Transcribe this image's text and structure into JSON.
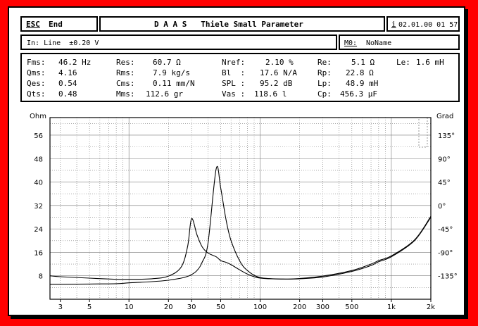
{
  "title_bar": {
    "esc_key": "ESC",
    "end_label": "End",
    "title": "D A A S   Thiele Small Parameter",
    "info_key": "i",
    "datetime": "02.01.00 01 57"
  },
  "status_bar": {
    "input": "In: Line  ±0.20 V",
    "memory_key": "M0:",
    "memory_name": "NoName"
  },
  "params": {
    "col1": [
      {
        "label": "Fms:",
        "value": "46.2 Hz"
      },
      {
        "label": "Qms:",
        "value": "4.16"
      },
      {
        "label": "Qes:",
        "value": "0.54"
      },
      {
        "label": "Qts:",
        "value": "0.48"
      }
    ],
    "col2": [
      {
        "label": "Res:",
        "value": "60.7 Ω"
      },
      {
        "label": "Rms:",
        "value": "7.9 kg/s"
      },
      {
        "label": "Cms:",
        "value": "0.11 mm/N"
      },
      {
        "label": "Mms:",
        "value": "112.6 gr"
      }
    ],
    "col3": [
      {
        "label": "Nref:",
        "value": "2.10 %"
      },
      {
        "label": "Bl  :",
        "value": "17.6 N/A"
      },
      {
        "label": "SPL :",
        "value": "95.2 dB"
      },
      {
        "label": "Vas :",
        "value": "118.6 l"
      }
    ],
    "col4": [
      {
        "label": "Re:",
        "value": "5.1 Ω"
      },
      {
        "label": "Rp:",
        "value": "22.8 Ω"
      },
      {
        "label": "Lp:",
        "value": "48.9 mH"
      },
      {
        "label": "Cp:",
        "value": "456.3 µF"
      }
    ],
    "col5": [
      {
        "label": "Le:",
        "value": "1.6 mH"
      }
    ]
  },
  "chart_data": {
    "type": "line",
    "left_axis_label": "Ohm",
    "right_axis_label": "Grad",
    "y_ticks": [
      "56",
      "48",
      "40",
      "32",
      "24",
      "16",
      "8"
    ],
    "y_right_ticks": [
      "135°",
      "90°",
      "45°",
      "0°",
      "-45°",
      "-90°",
      "-135°"
    ],
    "x_ticks": [
      "3",
      "5",
      "10",
      "20",
      "30",
      "50",
      "100",
      "200",
      "300",
      "500",
      "1k",
      "2k"
    ],
    "x_scale": "log",
    "xlim": [
      2.5,
      2000
    ],
    "ylim": [
      0,
      62
    ],
    "grid": true,
    "series": [
      {
        "x": [
          2.5,
          3,
          5,
          8,
          10,
          15,
          20,
          25,
          28,
          30,
          33,
          36,
          40,
          46.2,
          50,
          55,
          60,
          70,
          80,
          100,
          150,
          200,
          300,
          500,
          700,
          800,
          1000,
          1500,
          2000
        ],
        "y": [
          5.1,
          5.1,
          5.2,
          5.3,
          5.6,
          6.0,
          6.5,
          7.2,
          7.8,
          8.4,
          9.8,
          12.5,
          19.0,
          44.5,
          38.0,
          27.0,
          20.0,
          13.0,
          9.8,
          7.4,
          6.9,
          7.0,
          7.6,
          9.5,
          11.5,
          12.8,
          14.5,
          20.0,
          28.0
        ]
      },
      {
        "x": [
          2.5,
          3,
          5,
          8,
          10,
          15,
          20,
          25,
          28,
          30,
          33,
          36,
          40,
          46.2,
          50,
          55,
          60,
          70,
          80,
          100,
          150,
          200,
          300,
          500,
          700,
          800,
          1000,
          1500,
          2000
        ],
        "y": [
          8.0,
          7.7,
          7.2,
          6.8,
          6.8,
          7.0,
          7.9,
          11.0,
          18.0,
          27.5,
          22.0,
          18.0,
          15.8,
          14.5,
          13.2,
          12.6,
          11.8,
          10.0,
          8.6,
          7.2,
          6.9,
          7.1,
          7.9,
          9.8,
          12.0,
          13.2,
          14.8,
          20.2,
          28.3
        ]
      }
    ]
  }
}
